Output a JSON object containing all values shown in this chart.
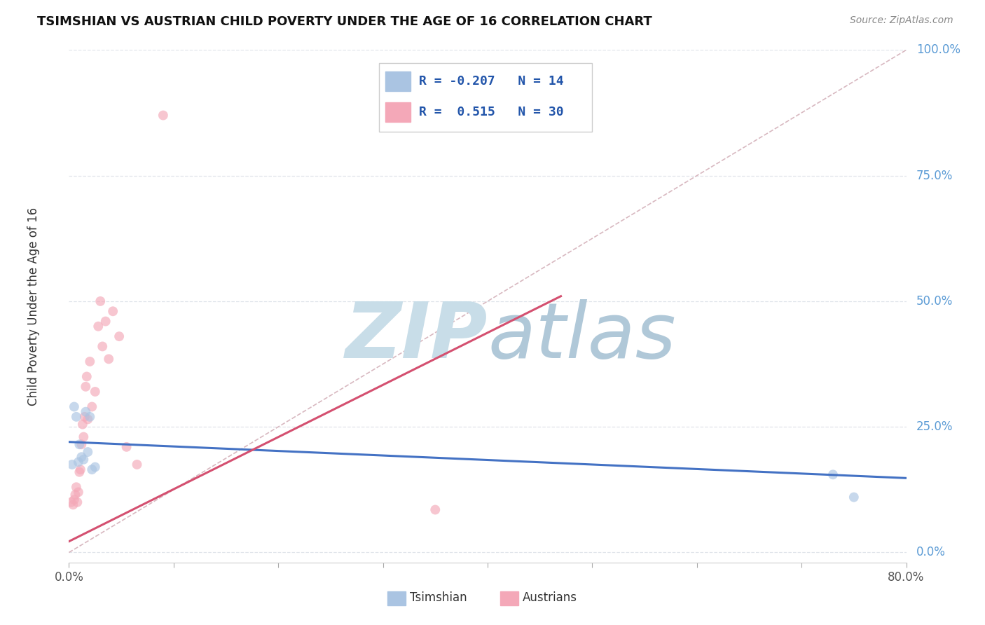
{
  "title": "TSIMSHIAN VS AUSTRIAN CHILD POVERTY UNDER THE AGE OF 16 CORRELATION CHART",
  "source": "Source: ZipAtlas.com",
  "ylabel_label": "Child Poverty Under the Age of 16",
  "xmin": 0.0,
  "xmax": 0.8,
  "ymin": -0.02,
  "ymax": 1.0,
  "legend_tsimshian_R": "-0.207",
  "legend_tsimshian_N": "14",
  "legend_austrians_R": "0.515",
  "legend_austrians_N": "30",
  "tsimshian_color": "#aac4e2",
  "austrians_color": "#f4a8b8",
  "tsimshian_line_color": "#4472c4",
  "austrians_line_color": "#d45070",
  "diag_line_color": "#d8b8c0",
  "background_color": "#ffffff",
  "watermark_zip_color": "#ccdded",
  "watermark_atlas_color": "#b8ccdc",
  "tsimshian_x": [
    0.003,
    0.005,
    0.007,
    0.009,
    0.01,
    0.012,
    0.014,
    0.016,
    0.018,
    0.02,
    0.022,
    0.025,
    0.73,
    0.75
  ],
  "tsimshian_y": [
    0.175,
    0.29,
    0.27,
    0.18,
    0.215,
    0.19,
    0.185,
    0.28,
    0.2,
    0.27,
    0.165,
    0.17,
    0.155,
    0.11
  ],
  "austrians_x": [
    0.002,
    0.004,
    0.005,
    0.006,
    0.007,
    0.008,
    0.009,
    0.01,
    0.011,
    0.012,
    0.013,
    0.014,
    0.015,
    0.016,
    0.017,
    0.018,
    0.02,
    0.022,
    0.025,
    0.028,
    0.03,
    0.032,
    0.035,
    0.038,
    0.042,
    0.048,
    0.055,
    0.065,
    0.09,
    0.35
  ],
  "austrians_y": [
    0.1,
    0.095,
    0.105,
    0.115,
    0.13,
    0.1,
    0.12,
    0.16,
    0.165,
    0.215,
    0.255,
    0.23,
    0.27,
    0.33,
    0.35,
    0.265,
    0.38,
    0.29,
    0.32,
    0.45,
    0.5,
    0.41,
    0.46,
    0.385,
    0.48,
    0.43,
    0.21,
    0.175,
    0.87,
    0.085
  ],
  "marker_size": 100,
  "marker_alpha": 0.65,
  "tsimshian_line_x0": 0.0,
  "tsimshian_line_x1": 0.8,
  "tsimshian_line_y0": 0.22,
  "tsimshian_line_y1": 0.148,
  "austrians_line_x0": 0.0,
  "austrians_line_x1": 0.47,
  "austrians_line_y0": 0.022,
  "austrians_line_y1": 0.51,
  "grid_color": "#e0e4ea",
  "ytick_vals": [
    0.0,
    0.25,
    0.5,
    0.75,
    1.0
  ],
  "ytick_labels": [
    "0.0%",
    "25.0%",
    "50.0%",
    "75.0%",
    "100.0%"
  ],
  "xtick_vals": [
    0.0,
    0.1,
    0.2,
    0.3,
    0.4,
    0.5,
    0.6,
    0.7,
    0.8
  ],
  "xtick_show": {
    "0.0": "0.0%",
    "0.8": "80.0%"
  }
}
